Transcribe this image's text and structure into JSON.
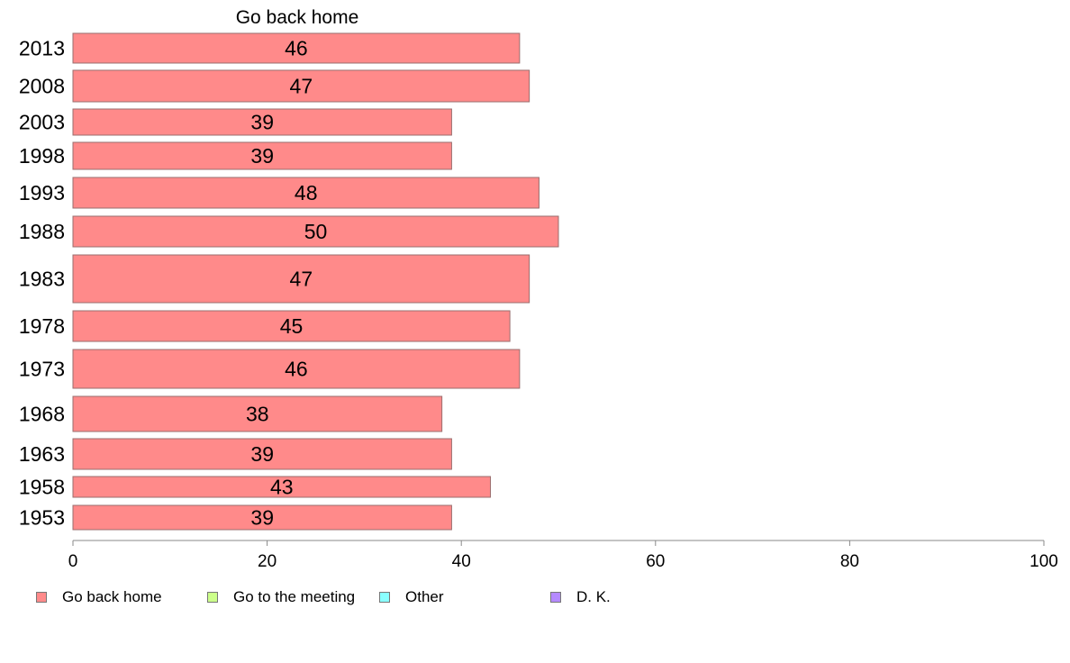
{
  "chart_data": {
    "type": "bar",
    "orientation": "horizontal",
    "title": "Go back home",
    "categories": [
      "2013",
      "2008",
      "2003",
      "1998",
      "1993",
      "1988",
      "1983",
      "1978",
      "1973",
      "1968",
      "1963",
      "1958",
      "1953"
    ],
    "series": [
      {
        "name": "Go back home",
        "color": "#ff8a8a",
        "values": [
          46,
          47,
          39,
          39,
          48,
          50,
          47,
          45,
          46,
          38,
          39,
          43,
          39
        ]
      }
    ],
    "data_labels": [
      "46",
      "47",
      "39",
      "39",
      "48",
      "50",
      "47",
      "45",
      "46",
      "38",
      "39",
      "43",
      "39"
    ],
    "x_ticks": [
      "0",
      "20",
      "40",
      "60",
      "80",
      "100"
    ],
    "xlim": [
      0,
      100
    ],
    "grid": false,
    "legend_position": "bottom"
  },
  "legend": {
    "items": [
      {
        "label": "Go back home",
        "color": "#ff8a8a"
      },
      {
        "label": "Go to the meeting",
        "color": "#ccff8a"
      },
      {
        "label": "Other",
        "color": "#8affff"
      },
      {
        "label": "D. K.",
        "color": "#b58aff"
      }
    ]
  }
}
